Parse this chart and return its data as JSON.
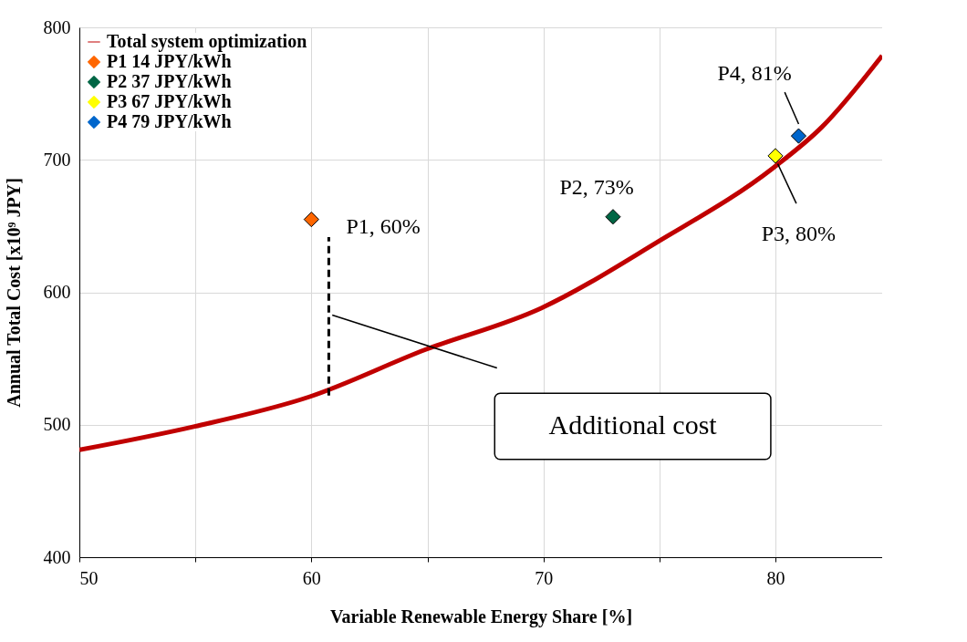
{
  "chart_data": {
    "type": "line",
    "xlabel": "Variable Renewable Energy Share [%]",
    "ylabel": "Annual Total Cost [x10⁹ JPY]",
    "xlim": [
      50,
      84.6
    ],
    "ylim": [
      400,
      800
    ],
    "xticks": [
      50,
      {
        "value": 55,
        "label": null
      },
      60,
      {
        "value": 65,
        "label": null
      },
      70,
      {
        "value": 75,
        "label": null
      },
      80
    ],
    "yticks": [
      400,
      500,
      600,
      700,
      800
    ],
    "grid": true,
    "legend": "top left",
    "series": [
      {
        "name": "Total system optimization",
        "color": "#c00000",
        "line_style": "solid",
        "x": [
          50,
          54.97,
          59.9,
          64.9,
          69.9,
          74.9,
          79.9,
          82.0,
          84.6
        ],
        "values": [
          481,
          498.7,
          521,
          556.6,
          588,
          637.8,
          693.8,
          724.7,
          778.7
        ]
      },
      {
        "name": "P1   14 JPY/kWh",
        "type": "scatter",
        "color": "#ff6600",
        "marker": "diamond",
        "x": [
          60
        ],
        "values": [
          655
        ]
      },
      {
        "name": "P2   37 JPY/kWh",
        "type": "scatter",
        "color": "#006644",
        "marker": "diamond",
        "x": [
          73
        ],
        "values": [
          657
        ]
      },
      {
        "name": "P3   67 JPY/kWh",
        "type": "scatter",
        "color": "#ffff00",
        "marker": "diamond",
        "x": [
          80
        ],
        "values": [
          703
        ]
      },
      {
        "name": "P4   79 JPY/kWh",
        "type": "scatter",
        "color": "#0066cc",
        "marker": "diamond",
        "x": [
          81
        ],
        "values": [
          718
        ]
      },
      {
        "type": "line",
        "color": "#000000",
        "line_style": "dashed",
        "x": [
          60.75,
          60.75
        ],
        "values": [
          522,
          641.6
        ]
      }
    ],
    "annotations": [
      {
        "text": "P1, 60%",
        "x": 60,
        "y": 655
      },
      {
        "text": "P2, 73%",
        "x": 73,
        "y": 657
      },
      {
        "text": "P3, 80%",
        "x": 80,
        "y": 703
      },
      {
        "text": "P4, 81%",
        "x": 81,
        "y": 718
      },
      "Additional cost"
    ]
  }
}
